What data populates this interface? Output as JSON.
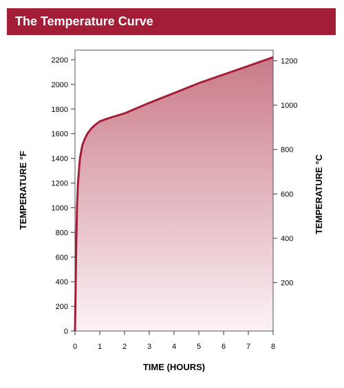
{
  "header": {
    "title": "The Temperature Curve"
  },
  "colors": {
    "accent": "#a41d36",
    "curve": "#a41d36",
    "fill_top": "#c97a88",
    "fill_bottom": "#fbf2f4"
  },
  "chart_data": {
    "type": "area",
    "title": "The Temperature Curve",
    "xlabel": "TIME (HOURS)",
    "ylabel": "TEMPERATURE °F",
    "ylabel_right": "TEMPERATURE °C",
    "xlim": [
      0,
      8
    ],
    "ylim": [
      0,
      2200
    ],
    "ylim_right": [
      -17.8,
      1204.4
    ],
    "x_ticks": [
      0,
      1,
      2,
      3,
      4,
      5,
      6,
      7,
      8
    ],
    "y_ticks": [
      0,
      200,
      400,
      600,
      800,
      1000,
      1200,
      1400,
      1600,
      1800,
      2000,
      2200
    ],
    "y_ticks_right": [
      200,
      400,
      600,
      800,
      1000,
      1200
    ],
    "grid": false,
    "legend": "none",
    "series": [
      {
        "x": [
          0,
          0.05,
          0.08,
          0.12,
          0.2,
          0.3,
          0.4,
          0.5,
          0.65,
          0.8,
          1.0,
          1.2,
          1.5,
          2,
          3,
          4,
          5,
          6,
          7,
          8
        ],
        "values": [
          0,
          700,
          1000,
          1200,
          1400,
          1510,
          1560,
          1600,
          1640,
          1670,
          1700,
          1715,
          1735,
          1765,
          1850,
          1930,
          2010,
          2080,
          2150,
          2220
        ]
      }
    ]
  }
}
